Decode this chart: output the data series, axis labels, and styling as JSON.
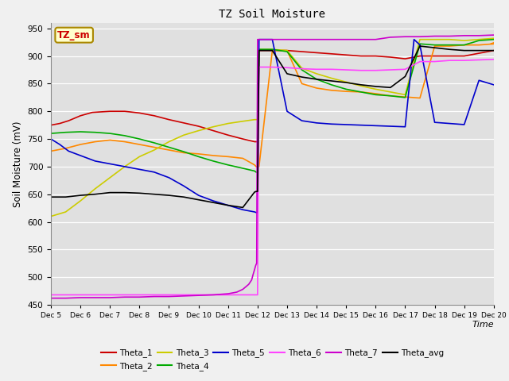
{
  "title": "TZ Soil Moisture",
  "xlabel": "Time",
  "ylabel": "Soil Moisture (mV)",
  "ylim": [
    450,
    960
  ],
  "yticks": [
    450,
    500,
    550,
    600,
    650,
    700,
    750,
    800,
    850,
    900,
    950
  ],
  "x_labels": [
    "Dec 5",
    "Dec 6",
    "Dec 7",
    "Dec 8",
    "Dec 9",
    "Dec 10",
    "Dec 11",
    "Dec 12",
    "Dec 13",
    "Dec 14",
    "Dec 15",
    "Dec 16",
    "Dec 17",
    "Dec 18",
    "Dec 19",
    "Dec 20"
  ],
  "watermark": "TZ_sm",
  "fig_bg": "#f0f0f0",
  "plot_bg": "#e0e0e0",
  "series": {
    "Theta_1": {
      "color": "#cc0000",
      "x": [
        0,
        0.3,
        0.6,
        1,
        1.4,
        2,
        2.5,
        3,
        3.5,
        4,
        4.5,
        5,
        5.5,
        6,
        6.5,
        6.9,
        6.95,
        7,
        7.05,
        7.5,
        8,
        8.5,
        9,
        9.5,
        10,
        10.5,
        11,
        11.5,
        12,
        12.5,
        13,
        13.5,
        14,
        14.5,
        15
      ],
      "y": [
        775,
        778,
        783,
        792,
        798,
        800,
        800,
        797,
        792,
        785,
        779,
        773,
        765,
        757,
        750,
        745,
        745,
        745,
        910,
        910,
        910,
        908,
        906,
        904,
        902,
        900,
        900,
        898,
        895,
        900,
        900,
        900,
        900,
        905,
        910
      ]
    },
    "Theta_2": {
      "color": "#ff8800",
      "x": [
        0,
        0.5,
        1,
        1.5,
        2,
        2.5,
        3,
        3.5,
        4,
        4.5,
        5,
        5.5,
        6,
        6.5,
        6.9,
        6.95,
        7,
        7.05,
        7.5,
        8,
        8.5,
        9,
        9.5,
        10,
        10.5,
        11,
        11.5,
        12,
        12.5,
        13,
        13.5,
        14,
        14.5,
        15,
        14.9,
        15
      ],
      "y": [
        728,
        733,
        740,
        745,
        748,
        745,
        740,
        735,
        730,
        725,
        723,
        720,
        718,
        715,
        703,
        700,
        700,
        700,
        910,
        910,
        850,
        842,
        838,
        836,
        835,
        832,
        828,
        826,
        824,
        918,
        918,
        920,
        920,
        922,
        922,
        924
      ]
    },
    "Theta_3": {
      "color": "#cccc00",
      "x": [
        0,
        0.5,
        1,
        1.5,
        2,
        2.5,
        3,
        3.5,
        4,
        4.5,
        5,
        5.5,
        6,
        6.5,
        6.9,
        6.95,
        7,
        7.05,
        7.5,
        8,
        8.5,
        9,
        9.5,
        10,
        10.5,
        11,
        11.5,
        12,
        12.5,
        13,
        13.5,
        14,
        14.5,
        15
      ],
      "y": [
        610,
        618,
        638,
        660,
        680,
        700,
        718,
        730,
        745,
        757,
        765,
        772,
        778,
        782,
        785,
        785,
        785,
        912,
        912,
        910,
        878,
        868,
        860,
        853,
        846,
        840,
        835,
        830,
        930,
        930,
        930,
        928,
        930,
        932
      ]
    },
    "Theta_4": {
      "color": "#00aa00",
      "x": [
        0,
        0.5,
        1,
        1.5,
        2,
        2.5,
        3,
        3.5,
        4,
        4.5,
        5,
        5.5,
        6,
        6.5,
        6.9,
        6.95,
        7,
        7.05,
        7.5,
        8,
        8.5,
        9,
        9.5,
        10,
        10.5,
        11,
        11.5,
        12,
        12.5,
        13,
        13.5,
        14,
        14.5,
        15
      ],
      "y": [
        760,
        762,
        763,
        762,
        760,
        756,
        750,
        743,
        735,
        727,
        718,
        710,
        703,
        697,
        692,
        690,
        690,
        912,
        912,
        908,
        875,
        858,
        848,
        840,
        835,
        830,
        828,
        825,
        922,
        920,
        920,
        920,
        928,
        930
      ]
    },
    "Theta_5": {
      "color": "#0000cc",
      "x": [
        0,
        0.3,
        0.6,
        1,
        1.5,
        2,
        2.5,
        3,
        3.5,
        4,
        4.5,
        5,
        5.5,
        6,
        6.5,
        6.9,
        6.95,
        7,
        7.05,
        7.5,
        8,
        8.5,
        9,
        9.5,
        10,
        10.5,
        11,
        11.5,
        12,
        12.3,
        12.5,
        13,
        13.5,
        14,
        14.5,
        15
      ],
      "y": [
        750,
        740,
        728,
        720,
        710,
        705,
        700,
        695,
        690,
        680,
        665,
        648,
        638,
        630,
        622,
        618,
        617,
        617,
        930,
        930,
        800,
        783,
        779,
        777,
        776,
        775,
        774,
        773,
        772,
        930,
        920,
        780,
        778,
        776,
        856,
        848
      ]
    },
    "Theta_6": {
      "color": "#ff44ff",
      "x": [
        0,
        0.5,
        1,
        1.5,
        2,
        2.5,
        3,
        3.5,
        4,
        4.5,
        5,
        5.5,
        6,
        6.5,
        6.9,
        6.95,
        7,
        7.05,
        7.5,
        8,
        8.5,
        9,
        9.5,
        10,
        10.5,
        11,
        11.5,
        12,
        12.5,
        13,
        13.5,
        14,
        14.5,
        15
      ],
      "y": [
        468,
        468,
        468,
        468,
        468,
        468,
        468,
        468,
        468,
        468,
        468,
        468,
        468,
        468,
        468,
        468,
        468,
        880,
        880,
        879,
        877,
        876,
        876,
        875,
        874,
        874,
        875,
        876,
        890,
        890,
        892,
        892,
        893,
        894
      ]
    },
    "Theta_7": {
      "color": "#cc00cc",
      "x": [
        0,
        0.5,
        1,
        1.5,
        2,
        2.5,
        3,
        3.5,
        4,
        4.5,
        5,
        5.5,
        6,
        6.3,
        6.5,
        6.7,
        6.8,
        6.85,
        6.9,
        6.93,
        6.95,
        6.97,
        7,
        7.05,
        7.5,
        8,
        8.5,
        9,
        9.5,
        10,
        10.5,
        11,
        11.5,
        12,
        12.5,
        13,
        13.5,
        14,
        14.5,
        15
      ],
      "y": [
        462,
        462,
        463,
        463,
        463,
        464,
        464,
        465,
        465,
        466,
        467,
        468,
        470,
        473,
        478,
        487,
        495,
        505,
        514,
        520,
        523,
        525,
        930,
        930,
        930,
        930,
        930,
        930,
        930,
        930,
        930,
        930,
        934,
        935,
        935,
        936,
        936,
        937,
        937,
        938
      ]
    },
    "Theta_avg": {
      "color": "#000000",
      "x": [
        0,
        0.5,
        1,
        1.5,
        2,
        2.5,
        3,
        3.5,
        4,
        4.5,
        5,
        5.5,
        6,
        6.5,
        6.9,
        6.95,
        7,
        7.05,
        7.5,
        8,
        8.5,
        9,
        9.5,
        10,
        10.5,
        11,
        11.5,
        12,
        12.5,
        13,
        13.5,
        14,
        14.5,
        15
      ],
      "y": [
        645,
        645,
        648,
        650,
        653,
        653,
        652,
        650,
        648,
        645,
        640,
        635,
        630,
        626,
        654,
        655,
        655,
        910,
        910,
        868,
        862,
        858,
        855,
        852,
        848,
        845,
        843,
        863,
        918,
        915,
        912,
        910,
        910,
        910
      ]
    }
  },
  "legend_order": [
    "Theta_1",
    "Theta_2",
    "Theta_3",
    "Theta_4",
    "Theta_5",
    "Theta_6",
    "Theta_7",
    "Theta_avg"
  ]
}
